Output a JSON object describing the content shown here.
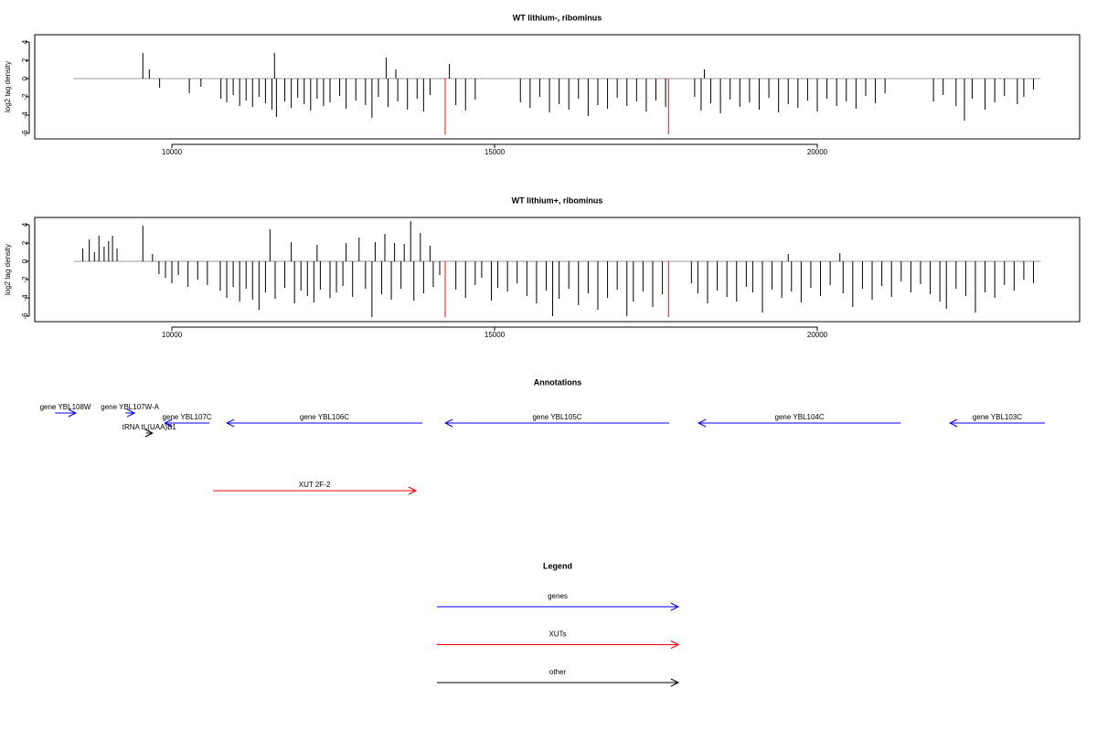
{
  "chart_data": [
    {
      "type": "bar",
      "title": "WT lithium-, ribominus",
      "y_label": "log2 tag density",
      "xlim": [
        7875,
        24065
      ],
      "ylim": [
        -6.6,
        4.8
      ],
      "xticks": [
        10000,
        15000,
        20000
      ],
      "yticks": [
        -6,
        -4,
        -2,
        0,
        2,
        4
      ],
      "baseline_range": [
        8480,
        23460
      ],
      "series": [
        {
          "color": "#000000",
          "x": [
            9550,
            9650,
            9810,
            10270,
            10450,
            10760,
            10850,
            10950,
            11050,
            11150,
            11250,
            11350,
            11450,
            11550,
            11590,
            11620,
            11750,
            11850,
            11950,
            12050,
            12150,
            12250,
            12350,
            12450,
            12600,
            12700,
            12850,
            13000,
            13100,
            13200,
            13320,
            13350,
            13470,
            13500,
            13650,
            13800,
            13900,
            14000,
            14300,
            14400,
            14550,
            14700,
            15400,
            15550,
            15700,
            15850,
            16000,
            16150,
            16300,
            16450,
            16600,
            16750,
            16900,
            17050,
            17200,
            17350,
            17500,
            17650,
            18100,
            18200,
            18250,
            18350,
            18500,
            18650,
            18800,
            18950,
            19100,
            19250,
            19400,
            19550,
            19700,
            19850,
            20000,
            20150,
            20300,
            20450,
            20600,
            20750,
            20900,
            21050,
            21800,
            21950,
            22150,
            22280,
            22400,
            22600,
            22750,
            22900,
            23100,
            23200,
            23350
          ],
          "values": [
            2.8,
            1.0,
            -1.0,
            -1.6,
            -0.9,
            -2.2,
            -2.6,
            -1.8,
            -3.0,
            -2.4,
            -3.1,
            -2.0,
            -2.7,
            -3.4,
            2.8,
            -4.2,
            -2.5,
            -3.2,
            -2.1,
            -2.8,
            -3.5,
            -2.2,
            -3.0,
            -2.6,
            -1.9,
            -3.3,
            -2.4,
            -2.9,
            -4.3,
            -2.0,
            2.3,
            -3.1,
            1.0,
            -2.5,
            -3.4,
            -2.2,
            -3.6,
            -1.8,
            1.6,
            -2.9,
            -3.5,
            -2.3,
            -2.6,
            -3.2,
            -2.0,
            -3.7,
            -2.8,
            -3.4,
            -2.2,
            -4.1,
            -2.9,
            -3.3,
            -2.1,
            -3.0,
            -2.5,
            -3.6,
            -2.4,
            -3.1,
            -2.0,
            -3.5,
            1.0,
            -2.7,
            -3.8,
            -2.3,
            -3.1,
            -2.6,
            -3.4,
            -2.1,
            -3.7,
            -2.8,
            -3.2,
            -2.4,
            -3.6,
            -2.2,
            -3.0,
            -2.5,
            -3.3,
            -1.9,
            -2.7,
            -1.6,
            -2.5,
            -1.8,
            -3.0,
            -4.6,
            -2.2,
            -3.4,
            -2.6,
            -1.9,
            -2.8,
            -2.0,
            -1.2
          ]
        },
        {
          "color": "#ff0000",
          "x": [
            14235,
            17695
          ],
          "values": [
            -6.1,
            -6.1
          ]
        }
      ]
    },
    {
      "type": "bar",
      "title": "WT lithium+, ribominus",
      "y_label": "log2 tag density",
      "xlim": [
        7875,
        24065
      ],
      "ylim": [
        -6.6,
        4.8
      ],
      "xticks": [
        10000,
        15000,
        20000
      ],
      "yticks": [
        -6,
        -4,
        -2,
        0,
        2,
        4
      ],
      "baseline_range": [
        8480,
        23460
      ],
      "series": [
        {
          "color": "#000000",
          "x": [
            8620,
            8720,
            8800,
            8870,
            8950,
            9020,
            9080,
            9150,
            9550,
            9700,
            9800,
            9900,
            10000,
            10100,
            10250,
            10400,
            10550,
            10750,
            10850,
            10950,
            11050,
            11150,
            11250,
            11350,
            11450,
            11520,
            11600,
            11750,
            11850,
            11900,
            12000,
            12100,
            12200,
            12250,
            12300,
            12450,
            12550,
            12650,
            12700,
            12800,
            12900,
            13000,
            13100,
            13150,
            13250,
            13300,
            13400,
            13450,
            13550,
            13600,
            13700,
            13750,
            13850,
            13900,
            14000,
            14050,
            14150,
            14400,
            14550,
            14700,
            14800,
            14950,
            15050,
            15200,
            15350,
            15500,
            15650,
            15800,
            15900,
            16000,
            16150,
            16300,
            16450,
            16600,
            16750,
            16900,
            17050,
            17150,
            17300,
            17450,
            17600,
            18050,
            18150,
            18300,
            18450,
            18600,
            18750,
            18900,
            19000,
            19150,
            19300,
            19450,
            19550,
            19600,
            19750,
            19900,
            20050,
            20200,
            20350,
            20400,
            20550,
            20700,
            20850,
            21000,
            21150,
            21300,
            21450,
            21600,
            21750,
            21900,
            22000,
            22150,
            22300,
            22450,
            22600,
            22750,
            22900,
            23050,
            23200,
            23350
          ],
          "values": [
            1.4,
            2.4,
            1.0,
            2.8,
            1.6,
            2.2,
            2.8,
            1.4,
            3.9,
            0.8,
            -1.4,
            -1.8,
            -2.4,
            -1.5,
            -2.8,
            -2.0,
            -2.6,
            -3.2,
            -4.0,
            -2.8,
            -4.4,
            -3.0,
            -4.2,
            -5.3,
            -3.4,
            3.5,
            -4.1,
            -2.9,
            2.1,
            -4.6,
            -3.2,
            -3.8,
            -4.5,
            1.8,
            -3.1,
            -4.0,
            -3.4,
            -2.7,
            2.0,
            -3.9,
            2.6,
            -3.0,
            -6.1,
            2.1,
            -3.6,
            3.0,
            -4.2,
            2.0,
            -3.0,
            1.9,
            4.4,
            -4.3,
            3.1,
            -3.5,
            1.7,
            -2.8,
            -1.5,
            -3.1,
            -4.0,
            -2.6,
            -1.8,
            -4.3,
            -2.9,
            -3.3,
            -2.4,
            -3.8,
            -4.6,
            -3.2,
            -6.0,
            -4.1,
            -3.0,
            -4.8,
            -3.5,
            -5.3,
            -4.0,
            -3.1,
            -6.0,
            -4.4,
            -3.3,
            -5.0,
            -3.6,
            -2.4,
            -3.5,
            -4.6,
            -3.2,
            -3.9,
            -4.4,
            -2.8,
            -3.4,
            -5.6,
            -3.1,
            -4.0,
            0.8,
            -3.3,
            -4.5,
            -2.9,
            -3.8,
            -2.6,
            0.9,
            -3.5,
            -5.0,
            -3.0,
            -4.2,
            -2.7,
            -3.9,
            -2.2,
            -3.4,
            -2.5,
            -3.6,
            -4.4,
            -5.2,
            -3.0,
            -3.8,
            -5.6,
            -3.4,
            -4.0,
            -2.6,
            -3.2,
            -2.0,
            -2.4
          ]
        },
        {
          "color": "#ff0000",
          "x": [
            14235,
            17695
          ],
          "values": [
            -6.1,
            -6.1
          ]
        }
      ]
    }
  ],
  "annotations": {
    "title": "Annotations",
    "items": [
      {
        "label": "gene YBL108W",
        "color": "#0000ff",
        "start": 8190,
        "end": 8510,
        "direction": "+"
      },
      {
        "label": "gene YBL107W-A",
        "color": "#0000ff",
        "start": 9280,
        "end": 9420,
        "direction": "+"
      },
      {
        "label": "tRNA tL(UAA)B1",
        "color": "#000000",
        "start": 9600,
        "end": 9700,
        "direction": "+"
      },
      {
        "label": "gene YBL107C",
        "color": "#0000ff",
        "start": 9890,
        "end": 10580,
        "direction": "-"
      },
      {
        "label": "gene YBL106C",
        "color": "#0000ff",
        "start": 10850,
        "end": 13880,
        "direction": "-"
      },
      {
        "label": "gene YBL105C",
        "color": "#0000ff",
        "start": 14235,
        "end": 17705,
        "direction": "-"
      },
      {
        "label": "gene YBL104C",
        "color": "#0000ff",
        "start": 18160,
        "end": 21290,
        "direction": "-"
      },
      {
        "label": "gene YBL103C",
        "color": "#0000ff",
        "start": 22055,
        "end": 23525,
        "direction": "-"
      },
      {
        "label": "XUT 2F-2",
        "color": "#ff0000",
        "start": 10640,
        "end": 13780,
        "direction": "+"
      }
    ]
  },
  "legend": {
    "title": "Legend",
    "items": [
      {
        "label": "genes",
        "color": "#0000ff"
      },
      {
        "label": "XUTs",
        "color": "#ff0000"
      },
      {
        "label": "other",
        "color": "#000000"
      }
    ]
  }
}
